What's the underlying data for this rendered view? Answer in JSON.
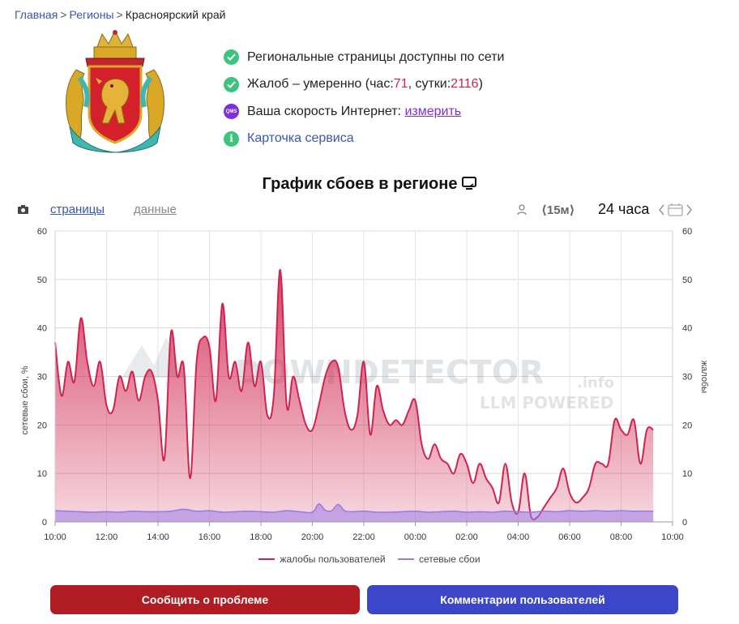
{
  "breadcrumb": {
    "home": "Главная",
    "regions": "Регионы",
    "current": "Красноярский край",
    "sep": ">"
  },
  "status": {
    "network": "Региональные страницы доступны по сети",
    "complaints_prefix": "Жалоб – умеренно (час: ",
    "complaints_hour": "71",
    "complaints_mid": ", сутки: ",
    "complaints_day": "2116",
    "complaints_suffix": ")",
    "speed_text": "Ваша скорость Интернет: ",
    "speed_link": "измерить",
    "qms_label": "QMS",
    "service_card": "Карточка сервиса",
    "info_glyph": "i"
  },
  "chart_title": "График сбоев в регионе",
  "toolbar": {
    "tab_pages": "страницы",
    "tab_data": "данные",
    "interval": "⟨15м⟩",
    "range": "24 часа",
    "nav": "<  >"
  },
  "colors": {
    "complaints": "#d0234f",
    "outages": "#9b7be6",
    "report_button": "#b01c22",
    "comments_button": "#3b47c8"
  },
  "chart_data": {
    "type": "area",
    "ylabel_left": "сетевые сбои, %",
    "ylabel_right": "жалобы",
    "ylim": [
      0,
      60
    ],
    "yticks": [
      0,
      10,
      20,
      30,
      40,
      50,
      60
    ],
    "xlim": [
      10,
      34
    ],
    "xticks": [
      {
        "x": 10,
        "label": "10:00"
      },
      {
        "x": 12,
        "label": "12:00"
      },
      {
        "x": 14,
        "label": "14:00"
      },
      {
        "x": 16,
        "label": "16:00"
      },
      {
        "x": 18,
        "label": "18:00"
      },
      {
        "x": 20,
        "label": "20:00"
      },
      {
        "x": 22,
        "label": "22:00"
      },
      {
        "x": 24,
        "label": "00:00"
      },
      {
        "x": 26,
        "label": "02:00"
      },
      {
        "x": 28,
        "label": "04:00"
      },
      {
        "x": 30,
        "label": "06:00"
      },
      {
        "x": 32,
        "label": "08:00"
      },
      {
        "x": 34,
        "label": "10:00"
      }
    ],
    "grid": true,
    "legend_position": "bottom",
    "watermark": [
      "DOWNDETECTOR",
      ".info",
      "LLM POWERED"
    ],
    "series": [
      {
        "name": "жалобы пользователей",
        "x": [
          10.0,
          10.25,
          10.5,
          10.75,
          11.0,
          11.25,
          11.5,
          11.75,
          12.0,
          12.25,
          12.5,
          12.75,
          13.0,
          13.25,
          13.5,
          13.75,
          14.0,
          14.25,
          14.5,
          14.75,
          15.0,
          15.25,
          15.5,
          15.75,
          16.0,
          16.25,
          16.5,
          16.75,
          17.0,
          17.25,
          17.5,
          17.75,
          18.0,
          18.25,
          18.5,
          18.75,
          19.0,
          19.25,
          19.5,
          19.75,
          20.0,
          20.25,
          20.5,
          20.75,
          21.0,
          21.25,
          21.5,
          21.75,
          22.0,
          22.25,
          22.5,
          22.75,
          23.0,
          23.25,
          23.5,
          23.75,
          24.0,
          24.25,
          24.5,
          24.75,
          25.0,
          25.25,
          25.5,
          25.75,
          26.0,
          26.25,
          26.5,
          26.75,
          27.0,
          27.25,
          27.5,
          27.75,
          28.0,
          28.25,
          28.5,
          28.75,
          29.0,
          29.25,
          29.5,
          29.75,
          30.0,
          30.25,
          30.5,
          30.75,
          31.0,
          31.25,
          31.5,
          31.75,
          32.0,
          32.25,
          32.5,
          32.75,
          33.0,
          33.25
        ],
        "values": [
          37,
          26,
          33,
          29,
          42,
          33,
          28,
          33,
          24,
          23,
          30,
          27,
          31,
          25,
          30,
          31,
          25,
          13,
          39,
          30,
          32,
          9,
          33,
          38,
          36,
          25,
          45,
          30,
          33,
          27,
          37,
          28,
          33,
          22,
          26,
          52,
          24,
          30,
          25,
          20,
          19,
          24,
          30,
          33,
          32,
          23,
          19,
          22,
          33,
          18,
          28,
          23,
          20,
          21,
          20,
          23,
          25,
          16,
          13,
          16,
          13,
          12,
          10,
          14,
          12,
          8,
          12,
          9,
          7,
          4,
          12,
          4,
          2,
          10,
          1,
          1,
          3,
          5,
          7,
          11,
          6,
          4,
          5,
          7,
          12,
          12,
          12,
          21,
          19,
          18,
          21,
          12,
          19,
          19
        ],
        "color": "#d0234f"
      },
      {
        "name": "сетевые сбои",
        "x": [
          10.0,
          10.5,
          11.0,
          11.5,
          12.0,
          12.5,
          13.0,
          13.5,
          14.0,
          14.5,
          15.0,
          15.5,
          16.0,
          16.5,
          17.0,
          17.5,
          18.0,
          18.5,
          19.0,
          19.5,
          20.0,
          20.25,
          20.5,
          20.75,
          21.0,
          21.25,
          21.5,
          22.0,
          22.5,
          23.0,
          23.5,
          24.0,
          24.5,
          25.0,
          25.5,
          26.0,
          26.5,
          27.0,
          27.5,
          28.0,
          28.5,
          29.0,
          29.5,
          30.0,
          30.5,
          31.0,
          31.5,
          32.0,
          32.5,
          33.0,
          33.25
        ],
        "values": [
          2.3,
          2.2,
          2.1,
          2.0,
          2.1,
          2.0,
          2.2,
          2.1,
          2.1,
          2.2,
          2.6,
          2.2,
          2.3,
          2.0,
          2.1,
          2.2,
          2.1,
          2.0,
          2.3,
          2.1,
          2.0,
          3.7,
          2.4,
          2.3,
          3.6,
          2.3,
          2.1,
          2.2,
          2.0,
          2.0,
          2.1,
          2.2,
          2.0,
          2.1,
          2.2,
          2.0,
          2.1,
          2.0,
          2.2,
          2.1,
          2.0,
          2.2,
          2.1,
          2.3,
          2.2,
          2.3,
          2.2,
          2.3,
          2.2,
          2.2,
          2.2
        ],
        "color": "#9b7be6"
      }
    ]
  },
  "buttons": {
    "report": "Сообщить о проблеме",
    "comments": "Комментарии пользователей"
  }
}
